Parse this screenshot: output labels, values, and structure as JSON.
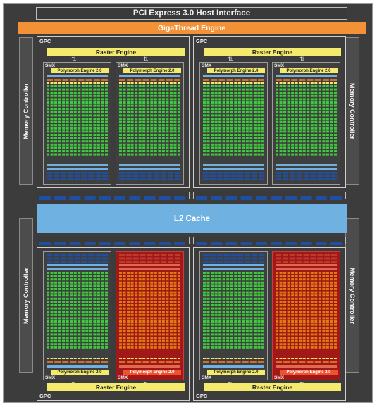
{
  "host_interface": "PCI Express 3.0 Host Interface",
  "thread_engine": "GigaThread Engine",
  "l2_cache": "L2 Cache",
  "memory_controller": "Memory Controller",
  "gpc_label": "GPC",
  "raster_engine": "Raster Engine",
  "smx_label": "SMX",
  "polymorph_engine": "Polymorph Engine 2.0",
  "colors": {
    "chip_background": "#3c3c3c",
    "giga_thread": "#f39137",
    "l2_cache": "#6fb1e0",
    "raster_engine": "#f4ea6e",
    "core_active": "#3ec93e",
    "core_disabled": "#e07a12",
    "disabled_smx": "#a01818",
    "register_blue": "#1f4fa0",
    "cache_light_blue": "#6fb1e0"
  },
  "disabled_smx_note_units": [
    "bottom-left GPC, right SMX",
    "bottom-right GPC, right SMX"
  ]
}
